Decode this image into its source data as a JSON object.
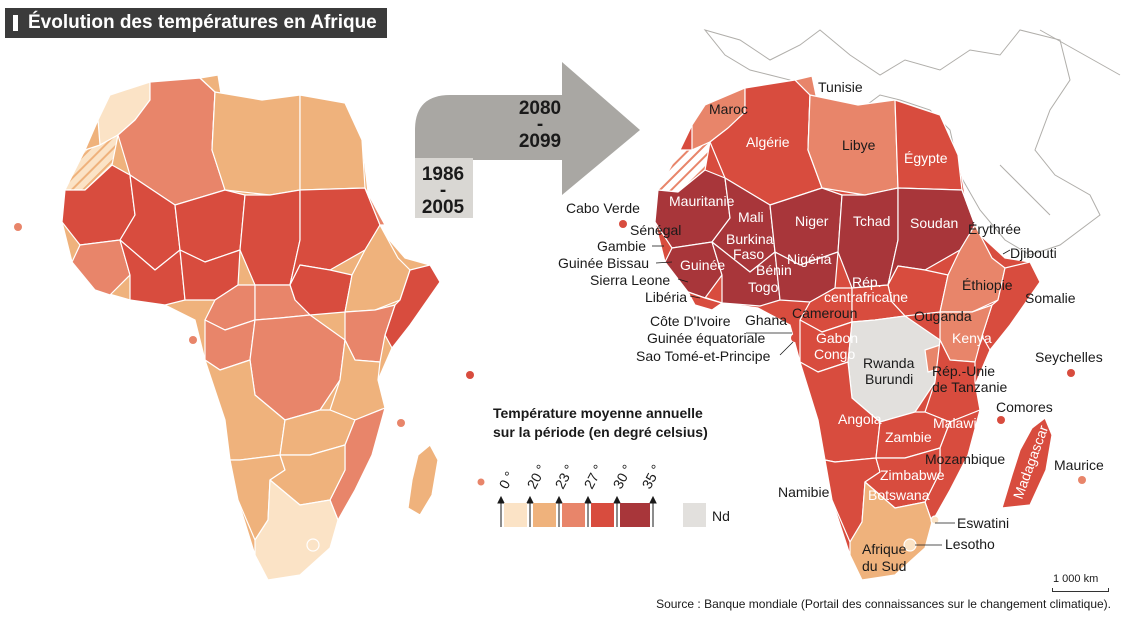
{
  "title": "Évolution des températures en Afrique",
  "period_before": [
    "1986",
    "-",
    "2005"
  ],
  "period_after": [
    "2080",
    "-",
    "2099"
  ],
  "legend": {
    "title_line1": "Température moyenne annuelle",
    "title_line2": "sur la période (en degré celsius)",
    "ticks": [
      "0 °",
      "20 °",
      "23 °",
      "27 °",
      "30 °",
      "35 °"
    ],
    "na_label": "Nd",
    "colors": [
      "#fbe3c6",
      "#efb27c",
      "#e8856a",
      "#d84c3e",
      "#a8363a"
    ],
    "na_color": "#e2e0dd"
  },
  "country_labels": {
    "maroc": "Maroc",
    "tunisie": "Tunisie",
    "algerie": "Algérie",
    "libye": "Libye",
    "egypte": "Égypte",
    "mauritanie": "Mauritanie",
    "mali": "Mali",
    "niger": "Niger",
    "tchad": "Tchad",
    "soudan": "Soudan",
    "erythree": "Érythrée",
    "djibouti": "Djibouti",
    "ethiopie": "Éthiopie",
    "somalie": "Somalie",
    "cabo_verde": "Cabo Verde",
    "senegal": "Sénégal",
    "gambie": "Gambie",
    "guinee_bissau": "Guinée Bissau",
    "guinee": "Guinée",
    "sierra_leone": "Sierra Leone",
    "liberia": "Libéria",
    "cote_ivoire": "Côte D'Ivoire",
    "ghana": "Ghana",
    "burkina": "Burkina",
    "faso": "Faso",
    "benin": "Bénin",
    "togo": "Togo",
    "nigeria": "Nigéria",
    "cameroun": "Cameroun",
    "rca1": "Rép.",
    "rca2": "centrafricaine",
    "guinee_eq": "Guinée équatoriale",
    "sao_tome": "Sao Tomé-et-Principe",
    "gabon": "Gabon",
    "congo": "Congo",
    "ouganda": "Ouganda",
    "kenya": "Kenya",
    "rwanda": "Rwanda",
    "burundi": "Burundi",
    "tanzanie1": "Rép.-Unie",
    "tanzanie2": "de Tanzanie",
    "seychelles": "Seychelles",
    "comores": "Comores",
    "angola": "Angola",
    "zambie": "Zambie",
    "malawi": "Malawi",
    "mozambique": "Mozambique",
    "madagascar": "Madagascar",
    "maurice": "Maurice",
    "zimbabwe": "Zimbabwe",
    "namibie": "Namibie",
    "botswana": "Botswana",
    "eswatini": "Eswatini",
    "lesotho": "Lesotho",
    "afrique1": "Afrique",
    "afrique2": "du Sud"
  },
  "scale_label": "1 000 km",
  "source": "Source : Banque mondiale (Portail des connaissances sur le changement climatique)."
}
